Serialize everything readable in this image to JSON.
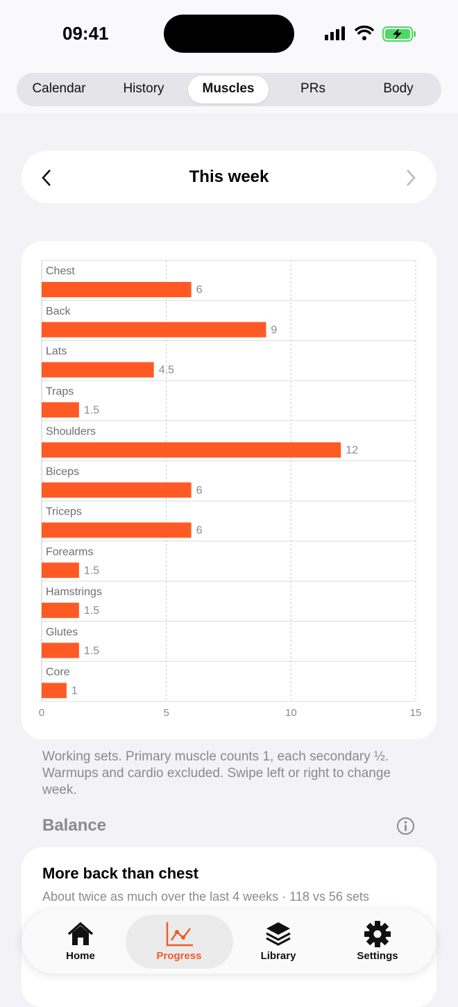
{
  "status": {
    "time": "09:41"
  },
  "tabs": {
    "items": [
      "Calendar",
      "History",
      "Muscles",
      "PRs",
      "Body"
    ]
  },
  "week_nav": {
    "title": "This week"
  },
  "chart_data": {
    "type": "bar",
    "orientation": "horizontal",
    "categories": [
      "Chest",
      "Back",
      "Lats",
      "Traps",
      "Shoulders",
      "Biceps",
      "Triceps",
      "Forearms",
      "Hamstrings",
      "Glutes",
      "Core"
    ],
    "values": [
      6,
      9,
      4.5,
      1.5,
      12,
      6,
      6,
      1.5,
      1.5,
      1.5,
      1
    ],
    "color": "#ff5a24",
    "xlim": [
      0,
      15
    ],
    "xticks": [
      0,
      5,
      10,
      15
    ],
    "grid": true
  },
  "caption": "Working sets. Primary muscle counts 1, each secondary ½. Warmups and cardio excluded. Swipe left or right to change week.",
  "balance": {
    "heading": "Balance",
    "card": {
      "title": "More back than chest",
      "subtitle": "About twice as much over the last 4 weeks · 118 vs 56 sets"
    }
  },
  "tabbar": {
    "items": [
      "Home",
      "Progress",
      "Library",
      "Settings"
    ]
  }
}
